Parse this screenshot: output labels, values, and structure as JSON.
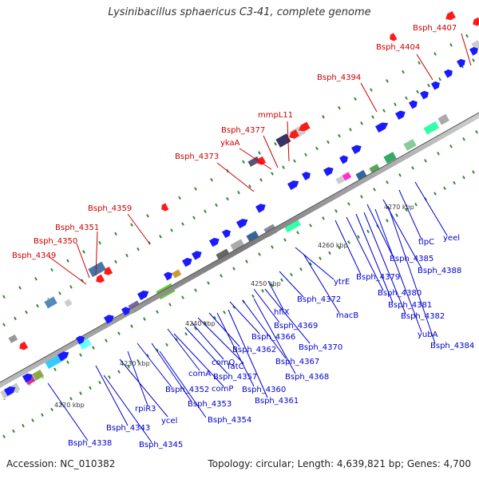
{
  "header": {
    "title": "Lysinibacillus sphaericus C3-41, complete genome"
  },
  "footer": {
    "accession": "Accession: NC_010382",
    "genome_info": "Topology: circular; Length: 4,639,821 bp; Genes: 4,700"
  },
  "scale": [
    "4220 kbp",
    "4230 kbp",
    "4240 kbp",
    "4250 kbp",
    "4260 kbp",
    "4270 kbp"
  ],
  "labels_top": [
    "Bsph_4349",
    "Bsph_4350",
    "Bsph_4351",
    "Bsph_4359",
    "Bsph_4373",
    "ykaA",
    "Bsph_4377",
    "mmpL11",
    "Bsph_4394",
    "Bsph_4404",
    "Bsph_4407"
  ],
  "labels_bottom": [
    "Bsph_4338",
    "Bsph_4345",
    "Bsph_4343",
    "ycel",
    "rpiR3",
    "Bsph_4354",
    "Bsph_4353",
    "Bsph_4352",
    "comP",
    "comA",
    "Bsph_4357",
    "comQ",
    "fatC",
    "Bsph_4362",
    "Bsph_4360",
    "Bsph_4361",
    "Bsph_4366",
    "Bsph_4367",
    "Bsph_4368",
    "Bsph_4369",
    "Bsph_4370",
    "hflX",
    "Bsph_4372",
    "macB",
    "ytrE",
    "Bsph_4379",
    "Bsph_4380",
    "Bsph_4381",
    "Bsph_4382",
    "yubA",
    "Bsph_4384",
    "Bsph_4385",
    "Bsph_4388",
    "tlpC",
    "yeel"
  ],
  "colors": {
    "forward_gene": "#1a1aff",
    "reverse_gene": "#ff1a1a",
    "label_forward": "#0000cc",
    "label_reverse": "#cc0000",
    "backbone": "#888888",
    "tick": "#2e8b2e"
  }
}
